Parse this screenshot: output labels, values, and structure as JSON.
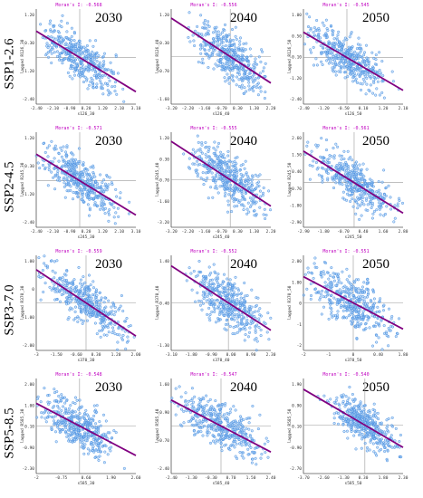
{
  "figure": {
    "rows": [
      {
        "scenario": "SSP1-2.6"
      },
      {
        "scenario": "SSP2-4.5"
      },
      {
        "scenario": "SSP3-7.0"
      },
      {
        "scenario": "SSP5-8.5"
      }
    ],
    "year_labels": [
      "2030",
      "2040",
      "2050"
    ]
  },
  "colors": {
    "points": "#4a90e2",
    "points_fill": "#9cc8f2",
    "regression": "#800080",
    "title": "#c000c0",
    "zero_lines": "#9a9a9a",
    "axes": "#555555"
  },
  "chart_data": [
    {
      "type": "scatter",
      "panel": "SSP1-2.6 2030",
      "title": "Moran's I: -0.568",
      "xlabel": "s126_30",
      "ylabel": "lagged R126_30",
      "xlim": [
        -2.4,
        3.1
      ],
      "ylim": [
        -2.4,
        2.5
      ],
      "xticks": [
        "-2.40",
        "-2.10",
        "-0.90",
        "0.20",
        "1.20",
        "2.10",
        "3.10"
      ],
      "yticks": [
        "1.20",
        "0.30",
        "-1.20",
        "-2.40"
      ],
      "slope": -0.568
    },
    {
      "type": "scatter",
      "panel": "SSP1-2.6 2040",
      "title": "Moran's I: -0.556",
      "xlabel": "s126_40",
      "ylabel": "lagged R126_40",
      "xlim": [
        -3.2,
        2.2
      ],
      "ylim": [
        -2.2,
        2.2
      ],
      "xticks": [
        "-3.20",
        "-2.20",
        "-1.60",
        "-0.70",
        "0.30",
        "1.30",
        "2.20"
      ],
      "yticks": [
        "1.20",
        "0.30",
        "-0.70",
        "-1.60"
      ],
      "slope": -0.556
    },
    {
      "type": "scatter",
      "panel": "SSP1-2.6 2050",
      "title": "Moran's I: -0.545",
      "xlabel": "s126_50",
      "ylabel": "lagged R126_50",
      "xlim": [
        -2.4,
        3.1
      ],
      "ylim": [
        -2.4,
        2.5
      ],
      "xticks": [
        "-2.40",
        "-1.20",
        "-0.50",
        "0.10",
        "1.20",
        "2.10"
      ],
      "yticks": [
        "1.00",
        "0.50",
        "-0.10",
        "-1.20",
        "-2.40"
      ],
      "slope": -0.545
    },
    {
      "type": "scatter",
      "panel": "SSP2-4.5 2030",
      "title": "Moran's I: -0.571",
      "xlabel": "s245_30",
      "ylabel": "lagged R245_30",
      "xlim": [
        -2.4,
        3.1
      ],
      "ylim": [
        -2.4,
        2.5
      ],
      "xticks": [
        "-2.40",
        "-2.10",
        "-0.90",
        "0.20",
        "1.20",
        "2.10",
        "3.10"
      ],
      "yticks": [
        "1.20",
        "0.30",
        "-1.20",
        "-2.40"
      ],
      "slope": -0.571
    },
    {
      "type": "scatter",
      "panel": "SSP2-4.5 2040",
      "title": "Moran's I: -0.555",
      "xlabel": "s245_40",
      "ylabel": "lagged R245_40",
      "xlim": [
        -3.2,
        2.2
      ],
      "ylim": [
        -2.2,
        2.2
      ],
      "xticks": [
        "-3.20",
        "-2.20",
        "-1.60",
        "-0.70",
        "0.30",
        "1.30",
        "2.20"
      ],
      "yticks": [
        "1.20",
        "0.30",
        "-0.70",
        "-1.60",
        "-3.20"
      ],
      "slope": -0.555
    },
    {
      "type": "scatter",
      "panel": "SSP2-4.5 2050",
      "title": "Moran's I: -0.561",
      "xlabel": "s245_50",
      "ylabel": "lagged R245_50",
      "xlim": [
        -2.9,
        2.8
      ],
      "ylim": [
        -2.3,
        2.6
      ],
      "xticks": [
        "-2.90",
        "-1.80",
        "-0.70",
        "0.40",
        "1.60",
        "2.80"
      ],
      "yticks": [
        "2.60",
        "1.50",
        "0.40",
        "-0.70",
        "-1.80",
        "-2.90"
      ],
      "slope": -0.561
    },
    {
      "type": "scatter",
      "panel": "SSP3-7.0 2030",
      "title": "Moran's I: -0.559",
      "xlabel": "s370_30",
      "ylabel": "lagged R370_30",
      "xlim": [
        -3,
        3
      ],
      "ylim": [
        -2.4,
        2.4
      ],
      "xticks": [
        "-3",
        "-1.50",
        "-0.60",
        "0.30",
        "1.20",
        "2.00"
      ],
      "yticks": [
        "1.00",
        "0",
        "-1.00",
        "-2.00"
      ],
      "slope": -0.559
    },
    {
      "type": "scatter",
      "panel": "SSP3-7.0 2040",
      "title": "Moran's I: -0.552",
      "xlabel": "s370_40",
      "ylabel": "lagged R370_40",
      "xlim": [
        -3.1,
        2.3
      ],
      "ylim": [
        -2.2,
        2.2
      ],
      "xticks": [
        "-3.10",
        "-1.80",
        "-0.90",
        "0.00",
        "0.90",
        "2.30"
      ],
      "yticks": [
        "1.40",
        "-0.40",
        "-1.30"
      ],
      "slope": -0.552
    },
    {
      "type": "scatter",
      "panel": "SSP3-7.0 2050",
      "title": "Moran's I: -0.551",
      "xlabel": "s370_50",
      "ylabel": "lagged R370_50",
      "xlim": [
        -2,
        2
      ],
      "ylim": [
        -2,
        2
      ],
      "xticks": [
        "-2",
        "-1",
        "0",
        "0.40",
        "1.80"
      ],
      "yticks": [
        "2.00",
        "1.00",
        "0",
        "-1",
        "-2"
      ],
      "slope": -0.551
    },
    {
      "type": "scatter",
      "panel": "SSP5-8.5 2030",
      "title": "Moran's I: -0.548",
      "xlabel": "s585_30",
      "ylabel": "lagged R585_30",
      "xlim": [
        -2,
        2.6
      ],
      "ylim": [
        -2.3,
        2.3
      ],
      "xticks": [
        "-2",
        "-0.75",
        "0.60",
        "1.90",
        "2.60"
      ],
      "yticks": [
        "2.00",
        "1.00",
        "0.10",
        "-0.90",
        "-2.30"
      ],
      "slope": -0.548
    },
    {
      "type": "scatter",
      "panel": "SSP5-8.5 2040",
      "title": "Moran's I: -0.547",
      "xlabel": "s585_40",
      "ylabel": "lagged R585_40",
      "xlim": [
        -2.4,
        2.4
      ],
      "ylim": [
        -2.4,
        2.4
      ],
      "xticks": [
        "-2.40",
        "-1.30",
        "-0.30",
        "0.70",
        "1.50",
        "2.40"
      ],
      "yticks": [
        "1.60",
        "0.90",
        "-0.70",
        "-2.40"
      ],
      "slope": -0.547
    },
    {
      "type": "scatter",
      "panel": "SSP5-8.5 2050",
      "title": "Moran's I: -0.540",
      "xlabel": "s585_50",
      "ylabel": "lagged R585_50",
      "xlim": [
        -3.7,
        2.3
      ],
      "ylim": [
        -2.7,
        2.6
      ],
      "xticks": [
        "-3.70",
        "-2.60",
        "-1.30",
        "0.30",
        "1.80",
        "2.30"
      ],
      "yticks": [
        "1.90",
        "0.90",
        "0.10",
        "-0.90",
        "-2.70"
      ],
      "slope": -0.54
    }
  ]
}
